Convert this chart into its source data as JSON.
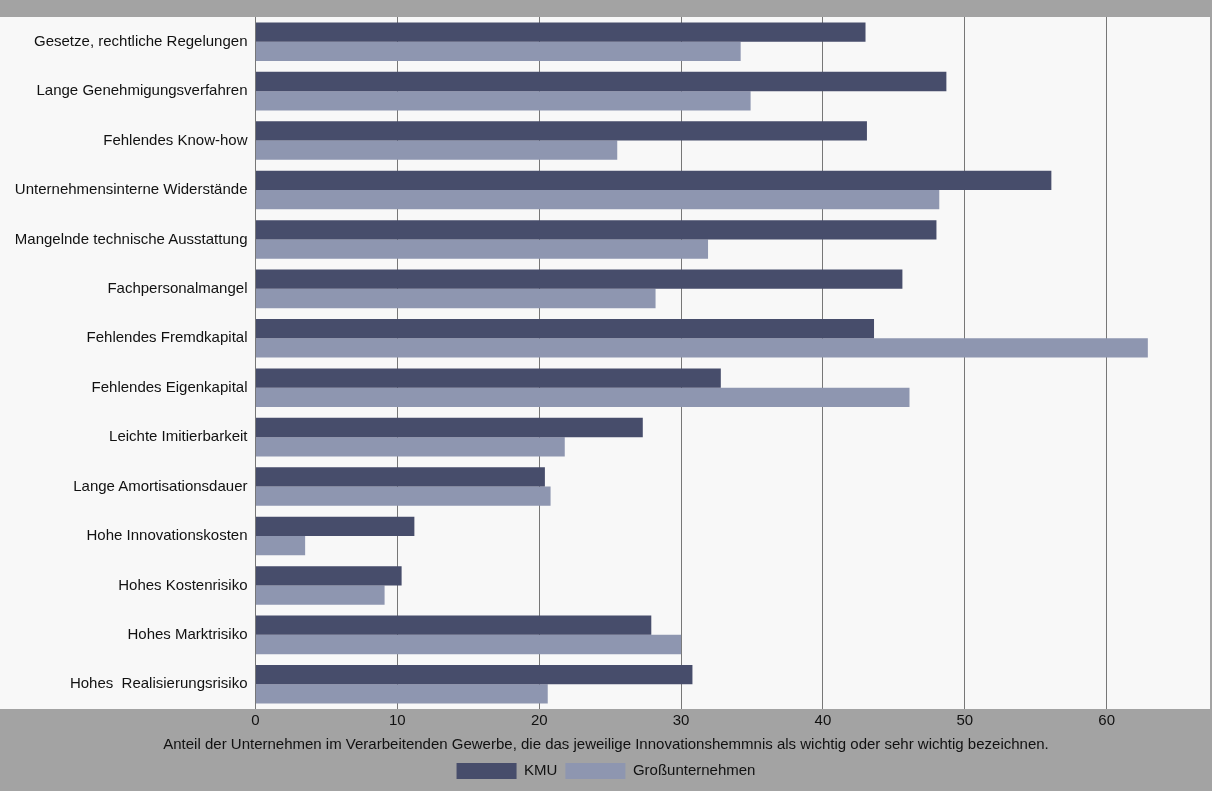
{
  "chart_data": {
    "type": "bar",
    "orientation": "horizontal",
    "categories": [
      "Gesetze, rechtliche Regelungen",
      "Lange Genehmigungsverfahren",
      "Fehlendes Know-how",
      "Unternehmensinterne Widerstände",
      "Mangelnde technische Ausstattung",
      "Fachpersonalmangel",
      "Fehlendes Fremdkapital",
      "Fehlendes Eigenkapital",
      "Leichte Imitierbarkeit",
      "Lange Amortisationsdauer",
      "Hohe Innovationskosten",
      "Hohes Kostenrisiko",
      "Hohes Marktrisiko",
      "Hohes  Realisierungsrisiko"
    ],
    "series": [
      {
        "name": "KMU",
        "color": "#474d6b",
        "values": [
          43.0,
          48.7,
          43.1,
          56.1,
          48.0,
          45.6,
          43.6,
          32.8,
          27.3,
          20.4,
          11.2,
          10.3,
          27.9,
          30.8
        ]
      },
      {
        "name": "Großunternehmen",
        "color": "#8e96b0",
        "values": [
          34.2,
          34.9,
          25.5,
          48.2,
          31.9,
          28.2,
          62.9,
          46.1,
          21.8,
          20.8,
          3.5,
          9.1,
          30.0,
          20.6
        ]
      }
    ],
    "xlim": [
      0,
      67
    ],
    "xticks": [
      0,
      10,
      20,
      30,
      40,
      50,
      60
    ],
    "grid": "x",
    "legend": "bottom",
    "annotations": [
      "Anteil der Unternehmen im Verarbeitenden Gewerbe, die das jeweilige Innovationshemmnis als wichtig oder sehr wichtig bezeichnen."
    ]
  }
}
